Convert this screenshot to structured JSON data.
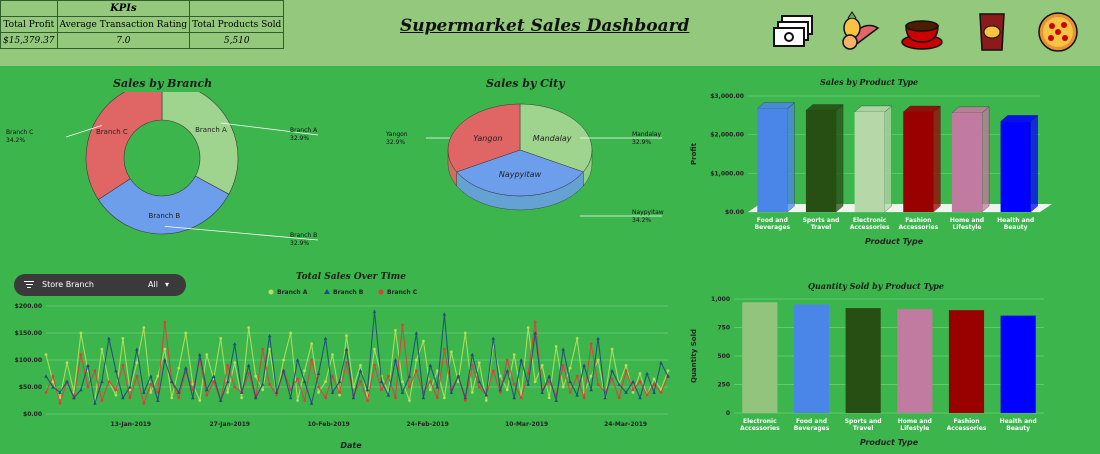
{
  "header": {
    "dashboard_title": "Supermarket Sales Dashboard",
    "kpis": {
      "title": "KPIs",
      "columns": [
        "Total Profit",
        "Average Transaction Rating",
        "Total Products Sold"
      ],
      "values": [
        "$15,379.37",
        "7.0",
        "5,510"
      ]
    },
    "icons": [
      "money-icon",
      "fruit-icon",
      "coffee-cup-icon",
      "snack-bag-icon",
      "pizza-icon"
    ]
  },
  "filter": {
    "label": "Store Branch",
    "value": "All"
  },
  "chart_data": [
    {
      "id": "branch",
      "type": "pie",
      "variant": "donut",
      "title": "Sales by Branch",
      "labels": [
        "Branch A",
        "Branch B",
        "Branch C"
      ],
      "values": [
        32.9,
        32.9,
        34.2
      ],
      "value_labels": [
        "32.9%",
        "32.9%",
        "34.2%"
      ],
      "colors": [
        "#9fd48e",
        "#6d9eeb",
        "#e06666"
      ]
    },
    {
      "id": "city",
      "type": "pie",
      "variant": "3d",
      "title": "Sales by City",
      "labels": [
        "Mandalay",
        "Naypyitaw",
        "Yangon"
      ],
      "values": [
        32.9,
        34.2,
        32.9
      ],
      "value_labels": [
        "32.9%",
        "34.2%",
        "32.9%"
      ],
      "colors": [
        "#9fd48e",
        "#6d9eeb",
        "#e06666"
      ]
    },
    {
      "id": "ptype",
      "type": "bar",
      "variant": "3d",
      "title": "Sales by Product Type",
      "categories": [
        "Food and Beverages",
        "Sports and Travel",
        "Electronic Accessories",
        "Fashion Accessories",
        "Home and Lifestyle",
        "Health and Beauty"
      ],
      "values": [
        2673.56,
        2624.9,
        2587.5,
        2585.99,
        2564.85,
        2342.56
      ],
      "colors": [
        "#4a86e8",
        "#274e13",
        "#b6d7a8",
        "#990000",
        "#c27ba0",
        "#0000ff"
      ],
      "xlabel": "Product Type",
      "ylabel": "Profit",
      "ylim": [
        0,
        3000
      ],
      "yticks": [
        "$0.00",
        "$1,000.00",
        "$2,000.00",
        "$3,000.00"
      ]
    },
    {
      "id": "qty",
      "type": "bar",
      "title": "Quantity Sold by Product Type",
      "categories": [
        "Electronic Accessories",
        "Food and Beverages",
        "Sports and Travel",
        "Home and Lifestyle",
        "Fashion Accessories",
        "Health and Beauty"
      ],
      "values": [
        971,
        952,
        920,
        911,
        902,
        854
      ],
      "colors": [
        "#93c47d",
        "#4a86e8",
        "#274e13",
        "#c27ba0",
        "#990000",
        "#0000ff"
      ],
      "xlabel": "Product Type",
      "ylabel": "Quantity Sold",
      "ylim": [
        0,
        1000
      ],
      "yticks": [
        "0",
        "250",
        "500",
        "750",
        "1,000"
      ]
    },
    {
      "id": "time",
      "type": "line",
      "title": "Total Sales Over Time",
      "xlabel": "Date",
      "x_start": "2019-01-01",
      "x_end": "2019-03-30",
      "xticks": [
        "13-Jan-2019",
        "27-Jan-2019",
        "10-Feb-2019",
        "24-Feb-2019",
        "10-Mar-2019",
        "24-Mar-2019"
      ],
      "xtick_positions": [
        "2019-01-13",
        "2019-01-27",
        "2019-02-10",
        "2019-02-24",
        "2019-03-10",
        "2019-03-24"
      ],
      "ylim": [
        0,
        200
      ],
      "yticks": [
        "$0.00",
        "$50.00",
        "$100.00",
        "$150.00",
        "$200.00"
      ],
      "series": [
        {
          "name": "Branch A",
          "color": "#b6e05a",
          "marker": "circle",
          "values": [
            110,
            60,
            30,
            95,
            40,
            150,
            80,
            25,
            120,
            60,
            35,
            140,
            45,
            95,
            160,
            40,
            70,
            120,
            30,
            85,
            150,
            55,
            25,
            110,
            65,
            140,
            40,
            95,
            30,
            160,
            70,
            45,
            120,
            35,
            100,
            150,
            25,
            80,
            130,
            40,
            60,
            110,
            35,
            145,
            50,
            90,
            30,
            120,
            70,
            40,
            155,
            60,
            25,
            100,
            135,
            45,
            80,
            30,
            115,
            60,
            150,
            40,
            95,
            25,
            130,
            70,
            45,
            110,
            35,
            160,
            60,
            90,
            30,
            125,
            50,
            85,
            140,
            40,
            70,
            100,
            30,
            120,
            55,
            90,
            40,
            75,
            35,
            65,
            45,
            80
          ]
        },
        {
          "name": "Branch B",
          "color": "#1f4e79",
          "marker": "triangle",
          "values": [
            70,
            50,
            40,
            60,
            30,
            45,
            90,
            20,
            60,
            140,
            80,
            30,
            50,
            120,
            40,
            70,
            25,
            100,
            60,
            40,
            85,
            30,
            110,
            45,
            70,
            25,
            60,
            130,
            40,
            90,
            30,
            55,
            145,
            40,
            80,
            30,
            100,
            60,
            20,
            75,
            140,
            40,
            60,
            120,
            30,
            80,
            45,
            190,
            60,
            35,
            100,
            40,
            70,
            150,
            30,
            90,
            50,
            185,
            40,
            70,
            30,
            110,
            60,
            35,
            140,
            45,
            80,
            30,
            100,
            55,
            150,
            40,
            70,
            25,
            120,
            60,
            35,
            90,
            45,
            140,
            30,
            80,
            55,
            40,
            60,
            30,
            75,
            40,
            95,
            70
          ]
        },
        {
          "name": "Branch C",
          "color": "#e33b3b",
          "marker": "circle",
          "values": [
            40,
            70,
            20,
            60,
            30,
            110,
            50,
            80,
            25,
            60,
            45,
            90,
            30,
            70,
            20,
            55,
            40,
            170,
            60,
            30,
            80,
            45,
            100,
            35,
            60,
            25,
            90,
            50,
            40,
            75,
            30,
            120,
            55,
            35,
            80,
            45,
            65,
            25,
            100,
            50,
            30,
            70,
            40,
            95,
            35,
            60,
            25,
            90,
            45,
            70,
            30,
            165,
            50,
            80,
            40,
            60,
            30,
            120,
            45,
            70,
            25,
            90,
            50,
            35,
            80,
            40,
            100,
            55,
            30,
            75,
            170,
            45,
            60,
            35,
            90,
            40,
            70,
            30,
            130,
            55,
            40,
            65,
            30,
            80,
            45,
            60,
            35,
            55,
            40,
            70
          ]
        }
      ]
    }
  ]
}
